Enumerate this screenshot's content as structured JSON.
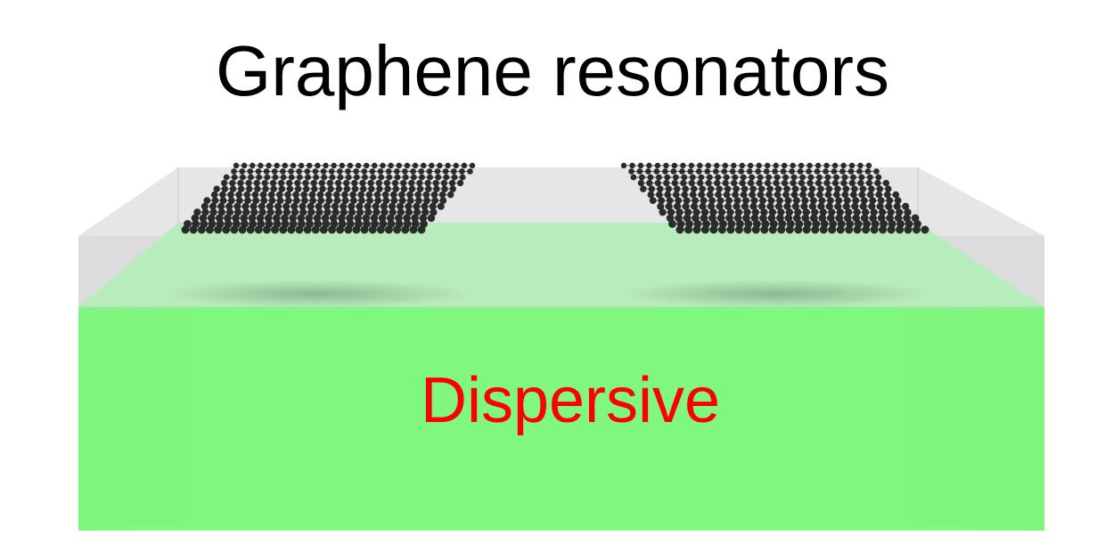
{
  "title": "Graphene resonators",
  "material_label": "Dispersive",
  "colors": {
    "background": "#ffffff",
    "title_text": "#000000",
    "material_label_text": "#ff0000",
    "substrate_green": "#80f880",
    "substrate_top_green": "#b8ecbc",
    "cladding_gray": "#e4e4e4",
    "graphene_atom": "#2b2b2b"
  },
  "icons": [
    "graphene-lattice-icon",
    "substrate-block-icon"
  ]
}
